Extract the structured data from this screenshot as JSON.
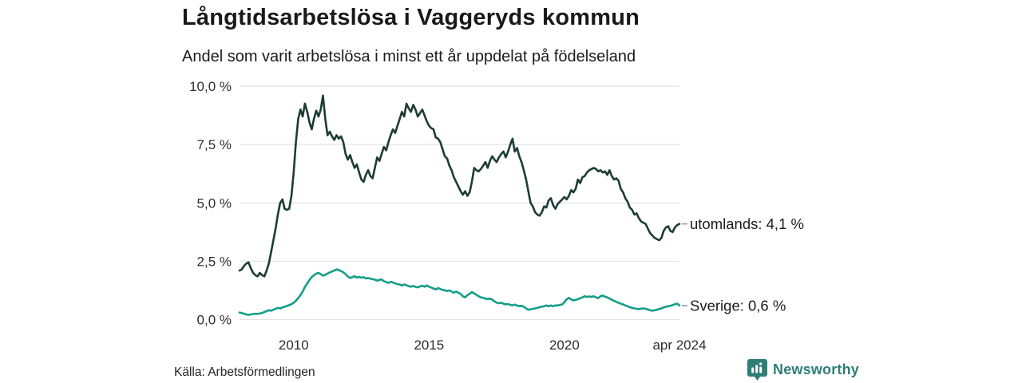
{
  "header": {
    "title": "Långtidsarbetslösa i Vaggeryds kommun",
    "subtitle": "Andel som varit arbetslösa i minst ett år uppdelat på födelseland"
  },
  "footer": {
    "source": "Källa: Arbetsförmedlingen",
    "brand": "Newsworthy",
    "brand_color": "#2e7e76",
    "brand_icon": "bar-chart-badge-icon"
  },
  "colors": {
    "gridline": "#e4e4e4",
    "axis_text": "#2e2e2e",
    "label_text": "#1b1b1b",
    "end_dash": "#999999"
  },
  "chart_data": {
    "type": "line",
    "title": "Långtidsarbetslösa i Vaggeryds kommun",
    "subtitle": "Andel som varit arbetslösa i minst ett år uppdelat på födelseland",
    "unit": "%",
    "grid": true,
    "legend_position": "right-end-labels",
    "x_axis": {
      "range": [
        2008.0,
        2024.25
      ],
      "ticks": [
        {
          "value": 2010,
          "label": "2010"
        },
        {
          "value": 2015,
          "label": "2015"
        },
        {
          "value": 2020,
          "label": "2020"
        },
        {
          "value": 2024.25,
          "label": "apr 2024"
        }
      ]
    },
    "y_axis": {
      "range": [
        0,
        10
      ],
      "ticks": [
        {
          "value": 0,
          "label": "0,0 %"
        },
        {
          "value": 2.5,
          "label": "2,5 %"
        },
        {
          "value": 5,
          "label": "5,0 %"
        },
        {
          "value": 7.5,
          "label": "7,5 %"
        },
        {
          "value": 10,
          "label": "10,0 %"
        }
      ]
    },
    "series": [
      {
        "name": "utomlands",
        "end_label": "utomlands: 4,1 %",
        "end_value": 4.1,
        "color": "#1d3c35",
        "x_start": 2008.0,
        "x_step": 0.0833333,
        "values": [
          2.1,
          2.15,
          2.3,
          2.4,
          2.45,
          2.2,
          2.0,
          1.9,
          1.85,
          2.0,
          1.9,
          1.85,
          2.1,
          2.4,
          2.9,
          3.4,
          3.9,
          4.5,
          5.0,
          5.15,
          4.75,
          4.7,
          4.75,
          5.3,
          6.3,
          7.6,
          8.6,
          9.0,
          8.7,
          9.25,
          8.9,
          8.45,
          8.15,
          8.6,
          8.95,
          8.7,
          9.0,
          9.6,
          8.6,
          7.9,
          8.05,
          7.85,
          7.7,
          7.9,
          7.75,
          7.85,
          7.6,
          7.1,
          6.85,
          7.05,
          6.75,
          6.5,
          6.65,
          6.3,
          6.0,
          5.9,
          6.2,
          6.4,
          6.15,
          6.05,
          6.5,
          6.95,
          6.8,
          7.1,
          7.4,
          7.25,
          7.6,
          7.9,
          8.15,
          8.0,
          8.3,
          8.6,
          8.9,
          8.7,
          9.25,
          9.05,
          8.9,
          9.2,
          9.0,
          8.7,
          8.85,
          9.0,
          8.75,
          8.5,
          8.3,
          8.2,
          8.15,
          7.8,
          7.75,
          7.6,
          7.3,
          7.0,
          6.9,
          6.6,
          6.4,
          6.1,
          5.9,
          5.7,
          5.5,
          5.35,
          5.5,
          5.3,
          5.45,
          5.9,
          6.5,
          6.4,
          6.35,
          6.45,
          6.6,
          6.75,
          6.5,
          6.8,
          7.0,
          6.85,
          6.75,
          6.95,
          7.1,
          7.2,
          6.95,
          7.2,
          7.5,
          7.75,
          7.2,
          7.35,
          7.0,
          6.75,
          6.4,
          6.0,
          5.5,
          5.0,
          4.85,
          4.6,
          4.5,
          4.45,
          4.6,
          4.85,
          4.8,
          5.1,
          5.2,
          4.9,
          4.75,
          4.95,
          5.05,
          5.15,
          5.25,
          5.15,
          5.3,
          5.55,
          5.45,
          5.6,
          6.0,
          5.85,
          6.1,
          6.15,
          6.3,
          6.4,
          6.45,
          6.5,
          6.45,
          6.35,
          6.4,
          6.3,
          6.35,
          6.2,
          6.4,
          6.15,
          6.0,
          6.05,
          5.95,
          5.6,
          5.45,
          5.2,
          5.05,
          4.8,
          4.7,
          4.5,
          4.55,
          4.35,
          4.2,
          4.15,
          4.1,
          3.9,
          3.7,
          3.6,
          3.5,
          3.45,
          3.4,
          3.5,
          3.8,
          3.95,
          4.0,
          3.8,
          3.75,
          3.95,
          4.05,
          4.1
        ]
      },
      {
        "name": "Sverige",
        "end_label": "Sverige: 0,6 %",
        "end_value": 0.6,
        "color": "#149e87",
        "x_start": 2008.0,
        "x_step": 0.0833333,
        "values": [
          0.3,
          0.28,
          0.25,
          0.22,
          0.2,
          0.22,
          0.24,
          0.25,
          0.24,
          0.26,
          0.28,
          0.32,
          0.36,
          0.4,
          0.38,
          0.42,
          0.46,
          0.5,
          0.48,
          0.52,
          0.55,
          0.58,
          0.62,
          0.66,
          0.72,
          0.8,
          0.92,
          1.05,
          1.2,
          1.4,
          1.55,
          1.7,
          1.82,
          1.9,
          1.97,
          2.0,
          1.95,
          1.88,
          1.92,
          1.97,
          2.02,
          2.06,
          2.1,
          2.15,
          2.12,
          2.08,
          2.02,
          1.95,
          1.85,
          1.78,
          1.82,
          1.86,
          1.8,
          1.83,
          1.79,
          1.82,
          1.76,
          1.78,
          1.75,
          1.73,
          1.71,
          1.67,
          1.7,
          1.72,
          1.64,
          1.61,
          1.57,
          1.62,
          1.59,
          1.55,
          1.52,
          1.5,
          1.46,
          1.5,
          1.47,
          1.43,
          1.41,
          1.44,
          1.4,
          1.38,
          1.42,
          1.45,
          1.41,
          1.46,
          1.41,
          1.37,
          1.33,
          1.29,
          1.35,
          1.31,
          1.27,
          1.25,
          1.22,
          1.25,
          1.2,
          1.15,
          1.2,
          1.15,
          1.1,
          1.0,
          0.95,
          1.05,
          1.1,
          1.18,
          1.12,
          1.06,
          1.0,
          0.95,
          0.93,
          0.9,
          0.88,
          0.9,
          0.85,
          0.78,
          0.72,
          0.7,
          0.72,
          0.68,
          0.65,
          0.67,
          0.63,
          0.61,
          0.64,
          0.6,
          0.57,
          0.59,
          0.55,
          0.48,
          0.42,
          0.44,
          0.46,
          0.48,
          0.5,
          0.53,
          0.55,
          0.57,
          0.6,
          0.57,
          0.6,
          0.57,
          0.61,
          0.6,
          0.63,
          0.65,
          0.75,
          0.87,
          0.93,
          0.86,
          0.82,
          0.84,
          0.88,
          0.92,
          0.95,
          1.0,
          0.97,
          0.99,
          0.97,
          1.0,
          0.95,
          0.92,
          1.0,
          1.03,
          0.98,
          0.95,
          0.9,
          0.85,
          0.8,
          0.76,
          0.72,
          0.68,
          0.65,
          0.6,
          0.57,
          0.53,
          0.5,
          0.48,
          0.46,
          0.45,
          0.47,
          0.48,
          0.46,
          0.43,
          0.4,
          0.38,
          0.4,
          0.42,
          0.45,
          0.48,
          0.52,
          0.55,
          0.57,
          0.59,
          0.62,
          0.66,
          0.68,
          0.6
        ]
      }
    ]
  }
}
